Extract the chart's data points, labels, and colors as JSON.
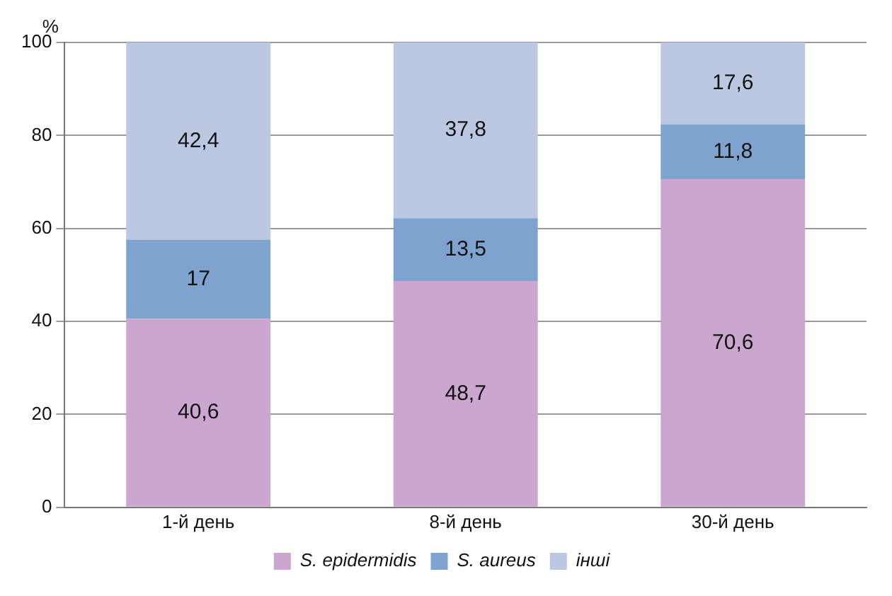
{
  "chart_data": {
    "type": "bar",
    "stacked": true,
    "ylabel": "%",
    "categories": [
      "1-й день",
      "8-й день",
      "30-й день"
    ],
    "series": [
      {
        "name": "S. epidermidis",
        "color": "#cba6cf",
        "values": [
          40.6,
          48.7,
          70.6
        ],
        "value_labels": [
          "40,6",
          "48,7",
          "70,6"
        ]
      },
      {
        "name": "S. aureus",
        "color": "#7fa3cf",
        "values": [
          17,
          13.5,
          11.8
        ],
        "value_labels": [
          "17",
          "13,5",
          "11,8"
        ]
      },
      {
        "name": "інші",
        "color": "#bcc8e2",
        "values": [
          42.4,
          37.8,
          17.6
        ],
        "value_labels": [
          "42,4",
          "37,8",
          "17,6"
        ]
      }
    ],
    "ylim": [
      0,
      100
    ],
    "yticks": [
      0,
      20,
      40,
      60,
      80,
      100
    ],
    "grid": "y",
    "legend": "bottom"
  }
}
